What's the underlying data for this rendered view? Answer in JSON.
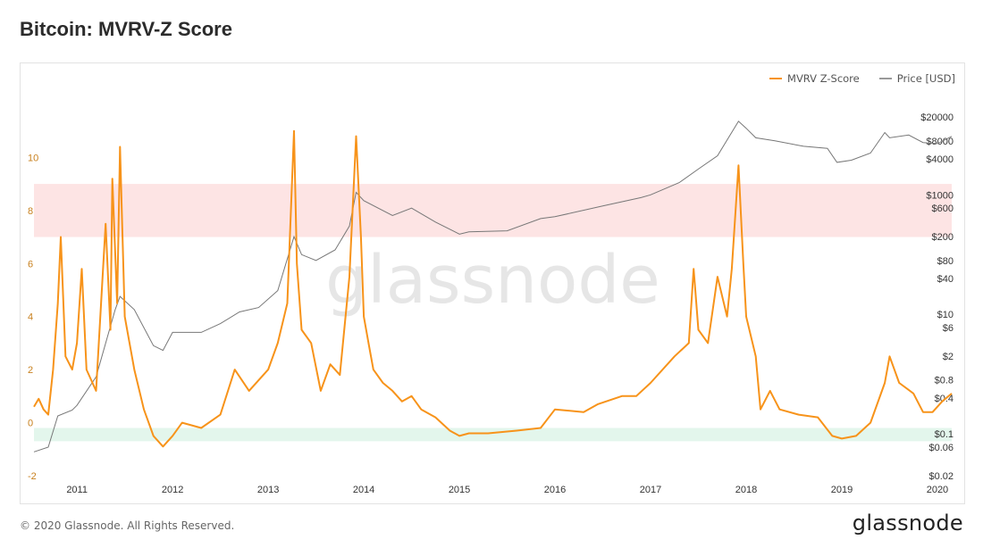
{
  "page": {
    "title": "Bitcoin: MVRV-Z Score",
    "copyright": "© 2020 Glassnode. All Rights Reserved.",
    "logo": "glassnode",
    "watermark": "glassnode"
  },
  "colors": {
    "mvrv": "#f7931a",
    "price": "#888888",
    "red_band": "#fde4e4",
    "green_band": "#e3f6ec",
    "left_axis_text": "#c8801e",
    "right_axis_text": "#333333"
  },
  "chart_data": {
    "type": "line",
    "title": "Bitcoin: MVRV-Z Score",
    "legend": {
      "position": "top-right",
      "entries": [
        "MVRV Z-Score",
        "Price [USD]"
      ]
    },
    "grid": false,
    "x_ticks": [
      "2011",
      "2012",
      "2013",
      "2014",
      "2015",
      "2016",
      "2017",
      "2018",
      "2019",
      "2020"
    ],
    "x_range": [
      2010.55,
      2020.15
    ],
    "left_axis": {
      "ticks": [
        "-2",
        "0",
        "2",
        "4",
        "6",
        "8",
        "10"
      ],
      "range": [
        -2,
        12.2
      ]
    },
    "right_axis": {
      "scale": "log",
      "ticks": [
        "$20000",
        "$8000",
        "$4000",
        "$1000",
        "$600",
        "$200",
        "$80",
        "$40",
        "$10",
        "$6",
        "$2",
        "$0.8",
        "$0.4",
        "$0.1",
        "$0.06",
        "$0.02"
      ],
      "range": [
        0.02,
        40000
      ]
    },
    "bands": [
      {
        "name": "red",
        "axis": "left",
        "from": 7,
        "to": 9
      },
      {
        "name": "green",
        "axis": "left",
        "from": -0.7,
        "to": -0.2
      }
    ],
    "series": [
      {
        "name": "MVRV Z-Score",
        "axis": "left",
        "points": [
          [
            2010.55,
            0.6
          ],
          [
            2010.6,
            0.9
          ],
          [
            2010.65,
            0.5
          ],
          [
            2010.7,
            0.3
          ],
          [
            2010.75,
            2.0
          ],
          [
            2010.8,
            4.5
          ],
          [
            2010.83,
            7.0
          ],
          [
            2010.88,
            2.5
          ],
          [
            2010.95,
            2.0
          ],
          [
            2011.0,
            3.0
          ],
          [
            2011.05,
            5.8
          ],
          [
            2011.1,
            2.0
          ],
          [
            2011.2,
            1.2
          ],
          [
            2011.3,
            7.5
          ],
          [
            2011.35,
            3.5
          ],
          [
            2011.37,
            9.2
          ],
          [
            2011.42,
            4.5
          ],
          [
            2011.45,
            10.4
          ],
          [
            2011.5,
            4.0
          ],
          [
            2011.6,
            2.0
          ],
          [
            2011.7,
            0.5
          ],
          [
            2011.8,
            -0.5
          ],
          [
            2011.9,
            -0.9
          ],
          [
            2012.0,
            -0.5
          ],
          [
            2012.1,
            0.0
          ],
          [
            2012.3,
            -0.2
          ],
          [
            2012.5,
            0.3
          ],
          [
            2012.65,
            2.0
          ],
          [
            2012.8,
            1.2
          ],
          [
            2013.0,
            2.0
          ],
          [
            2013.1,
            3.0
          ],
          [
            2013.2,
            4.5
          ],
          [
            2013.27,
            11.0
          ],
          [
            2013.3,
            6.0
          ],
          [
            2013.35,
            3.5
          ],
          [
            2013.45,
            3.0
          ],
          [
            2013.55,
            1.2
          ],
          [
            2013.65,
            2.2
          ],
          [
            2013.75,
            1.8
          ],
          [
            2013.85,
            5.5
          ],
          [
            2013.92,
            10.8
          ],
          [
            2013.97,
            7.0
          ],
          [
            2014.0,
            4.0
          ],
          [
            2014.05,
            3.0
          ],
          [
            2014.1,
            2.0
          ],
          [
            2014.2,
            1.5
          ],
          [
            2014.3,
            1.2
          ],
          [
            2014.4,
            0.8
          ],
          [
            2014.5,
            1.0
          ],
          [
            2014.6,
            0.5
          ],
          [
            2014.75,
            0.2
          ],
          [
            2014.9,
            -0.3
          ],
          [
            2015.0,
            -0.5
          ],
          [
            2015.1,
            -0.4
          ],
          [
            2015.3,
            -0.4
          ],
          [
            2015.6,
            -0.3
          ],
          [
            2015.85,
            -0.2
          ],
          [
            2016.0,
            0.5
          ],
          [
            2016.3,
            0.4
          ],
          [
            2016.45,
            0.7
          ],
          [
            2016.7,
            1.0
          ],
          [
            2016.85,
            1.0
          ],
          [
            2017.0,
            1.5
          ],
          [
            2017.25,
            2.5
          ],
          [
            2017.4,
            3.0
          ],
          [
            2017.45,
            5.8
          ],
          [
            2017.5,
            3.5
          ],
          [
            2017.6,
            3.0
          ],
          [
            2017.7,
            5.5
          ],
          [
            2017.8,
            4.0
          ],
          [
            2017.85,
            5.8
          ],
          [
            2017.92,
            9.7
          ],
          [
            2017.97,
            6.0
          ],
          [
            2018.0,
            4.0
          ],
          [
            2018.1,
            2.5
          ],
          [
            2018.15,
            0.5
          ],
          [
            2018.25,
            1.2
          ],
          [
            2018.35,
            0.5
          ],
          [
            2018.55,
            0.3
          ],
          [
            2018.75,
            0.2
          ],
          [
            2018.9,
            -0.5
          ],
          [
            2019.0,
            -0.6
          ],
          [
            2019.15,
            -0.5
          ],
          [
            2019.3,
            0.0
          ],
          [
            2019.45,
            1.5
          ],
          [
            2019.5,
            2.5
          ],
          [
            2019.6,
            1.5
          ],
          [
            2019.75,
            1.1
          ],
          [
            2019.85,
            0.4
          ],
          [
            2019.95,
            0.4
          ],
          [
            2020.05,
            0.8
          ],
          [
            2020.15,
            1.1
          ]
        ]
      },
      {
        "name": "Price [USD]",
        "axis": "right",
        "points": [
          [
            2010.55,
            0.05
          ],
          [
            2010.7,
            0.06
          ],
          [
            2010.8,
            0.2
          ],
          [
            2010.95,
            0.25
          ],
          [
            2011.0,
            0.3
          ],
          [
            2011.2,
            0.9
          ],
          [
            2011.4,
            12
          ],
          [
            2011.45,
            20
          ],
          [
            2011.6,
            12
          ],
          [
            2011.8,
            3
          ],
          [
            2011.9,
            2.5
          ],
          [
            2012.0,
            5
          ],
          [
            2012.3,
            5
          ],
          [
            2012.5,
            7
          ],
          [
            2012.7,
            11
          ],
          [
            2012.9,
            13
          ],
          [
            2013.1,
            25
          ],
          [
            2013.27,
            200
          ],
          [
            2013.35,
            100
          ],
          [
            2013.5,
            80
          ],
          [
            2013.7,
            120
          ],
          [
            2013.85,
            300
          ],
          [
            2013.92,
            1100
          ],
          [
            2014.0,
            800
          ],
          [
            2014.3,
            450
          ],
          [
            2014.5,
            600
          ],
          [
            2014.75,
            350
          ],
          [
            2015.0,
            220
          ],
          [
            2015.1,
            240
          ],
          [
            2015.5,
            250
          ],
          [
            2015.85,
            400
          ],
          [
            2016.0,
            430
          ],
          [
            2016.5,
            650
          ],
          [
            2016.9,
            900
          ],
          [
            2017.0,
            1000
          ],
          [
            2017.3,
            1600
          ],
          [
            2017.5,
            2700
          ],
          [
            2017.7,
            4500
          ],
          [
            2017.92,
            17000
          ],
          [
            2018.0,
            13000
          ],
          [
            2018.1,
            9000
          ],
          [
            2018.3,
            8000
          ],
          [
            2018.6,
            6500
          ],
          [
            2018.85,
            6000
          ],
          [
            2018.95,
            3500
          ],
          [
            2019.1,
            3800
          ],
          [
            2019.3,
            5000
          ],
          [
            2019.45,
            11000
          ],
          [
            2019.5,
            9000
          ],
          [
            2019.7,
            10000
          ],
          [
            2019.85,
            7500
          ],
          [
            2020.0,
            7200
          ],
          [
            2020.15,
            9500
          ]
        ]
      }
    ]
  }
}
